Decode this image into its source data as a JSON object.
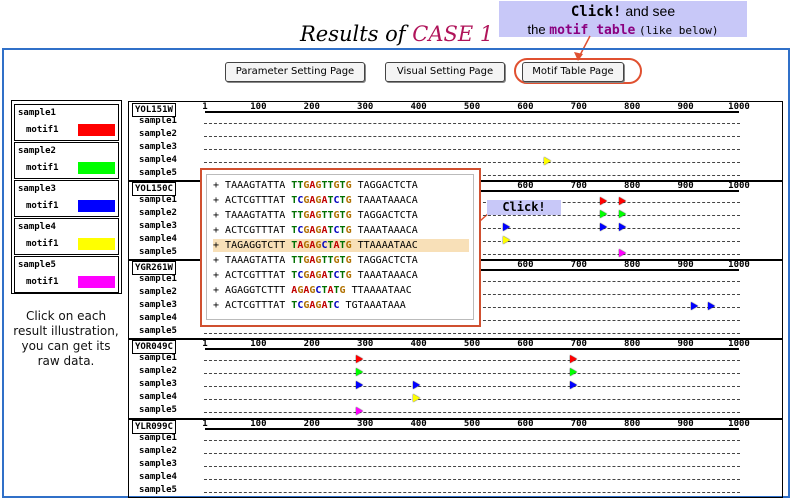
{
  "callout": {
    "click": "Click!",
    "and_see": "and see",
    "the": "the",
    "motif_table": "motif table",
    "like_below": "(like below)"
  },
  "title": {
    "prefix": "Results of",
    "case": "CASE 1"
  },
  "buttons": [
    "Parameter Setting Page",
    "Visual Setting Page",
    "Motif Table Page"
  ],
  "legend": [
    {
      "sample": "sample1",
      "motif": "motif1",
      "color": "#ff0000"
    },
    {
      "sample": "sample2",
      "motif": "motif1",
      "color": "#00ff00"
    },
    {
      "sample": "sample3",
      "motif": "motif1",
      "color": "#0000ff"
    },
    {
      "sample": "sample4",
      "motif": "motif1",
      "color": "#ffff00"
    },
    {
      "sample": "sample5",
      "motif": "motif1",
      "color": "#ff00ff"
    }
  ],
  "help_text": "Click on each result illustration, you can get its raw data.",
  "ticks": [
    "1",
    "100",
    "200",
    "300",
    "400",
    "500",
    "600",
    "700",
    "800",
    "900",
    "1000"
  ],
  "samples": [
    "sample1",
    "sample2",
    "sample3",
    "sample4",
    "sample5"
  ],
  "genes": [
    {
      "name": "YOL151W",
      "hits": [
        {
          "sample": 3,
          "pos": 640,
          "color": "#ffff00"
        }
      ]
    },
    {
      "name": "YOL150C",
      "hits": [
        {
          "sample": 0,
          "pos": 745,
          "color": "#ff0000"
        },
        {
          "sample": 0,
          "pos": 782,
          "color": "#ff0000"
        },
        {
          "sample": 1,
          "pos": 745,
          "color": "#00ff00"
        },
        {
          "sample": 1,
          "pos": 782,
          "color": "#00ff00"
        },
        {
          "sample": 2,
          "pos": 565,
          "color": "#0000ff"
        },
        {
          "sample": 2,
          "pos": 745,
          "color": "#0000ff"
        },
        {
          "sample": 2,
          "pos": 782,
          "color": "#0000ff"
        },
        {
          "sample": 3,
          "pos": 565,
          "color": "#ffff00"
        },
        {
          "sample": 4,
          "pos": 782,
          "color": "#ff00ff"
        }
      ]
    },
    {
      "name": "YGR261W",
      "hits": [
        {
          "sample": 2,
          "pos": 915,
          "color": "#0000ff"
        },
        {
          "sample": 2,
          "pos": 948,
          "color": "#0000ff"
        }
      ]
    },
    {
      "name": "YOR049C",
      "hits": [
        {
          "sample": 0,
          "pos": 290,
          "color": "#ff0000"
        },
        {
          "sample": 0,
          "pos": 690,
          "color": "#ff0000"
        },
        {
          "sample": 1,
          "pos": 290,
          "color": "#00ff00"
        },
        {
          "sample": 1,
          "pos": 690,
          "color": "#00ff00"
        },
        {
          "sample": 2,
          "pos": 290,
          "color": "#0000ff"
        },
        {
          "sample": 2,
          "pos": 395,
          "color": "#0000ff"
        },
        {
          "sample": 2,
          "pos": 690,
          "color": "#0000ff"
        },
        {
          "sample": 3,
          "pos": 395,
          "color": "#ffff00"
        },
        {
          "sample": 4,
          "pos": 290,
          "color": "#ff00ff"
        }
      ]
    },
    {
      "name": "YLR099C",
      "hits": []
    }
  ],
  "popup_rows": [
    {
      "strand": "+",
      "pre": "TAAAGTATTA",
      "motif": "TTGAGTTGTG",
      "post": "TAGGACTCTA",
      "highlight": false
    },
    {
      "strand": "+",
      "pre": "ACTCGTTTAT",
      "motif": "TCGAGATCTG",
      "post": "TAAATAAACA",
      "highlight": false
    },
    {
      "strand": "+",
      "pre": "TAAAGTATTA",
      "motif": "TTGAGTTGTG",
      "post": "TAGGACTCTA",
      "highlight": false
    },
    {
      "strand": "+",
      "pre": "ACTCGTTTAT",
      "motif": "TCGAGATCTG",
      "post": "TAAATAAACA",
      "highlight": false
    },
    {
      "strand": "+",
      "pre": "TAGAGGTCTT",
      "motif": "TAGAGCTATG",
      "post": "TTAAAATAAC",
      "highlight": true
    },
    {
      "strand": "+",
      "pre": "TAAAGTATTA",
      "motif": "TTGAGTTGTG",
      "post": "TAGGACTCTA",
      "highlight": false
    },
    {
      "strand": "+",
      "pre": "ACTCGTTTAT",
      "motif": "TCGAGATCTG",
      "post": "TAAATAAACA",
      "highlight": false
    },
    {
      "strand": "+",
      "pre": "AGAGGTCTTT",
      "motif": "AGAGCTATG",
      "post": "TTAAAATAAC",
      "highlight": false
    },
    {
      "strand": "+",
      "pre": "ACTCGTTTAT",
      "motif": "TCGAGATC",
      "post": "TGTAAATAAA",
      "highlight": false
    }
  ],
  "click_label": "Click!",
  "colors": {
    "frame": "#3070c8",
    "callout_bg": "#c8c8f8",
    "annotation_red": "#e05030"
  }
}
